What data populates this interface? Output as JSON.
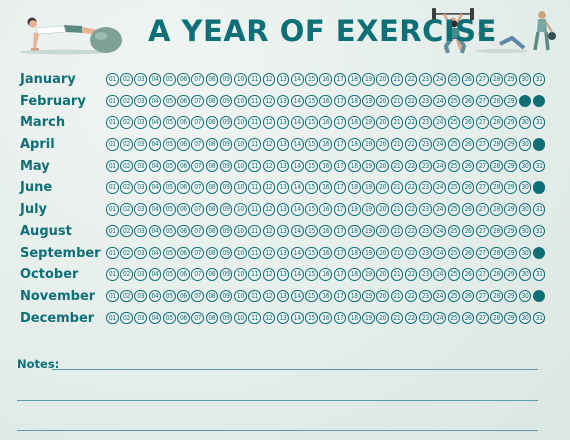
{
  "title": "A YEAR OF EXERCISE",
  "colors": {
    "accent": "#0f6f76",
    "background": "#e6efec"
  },
  "illustrations": [
    "pushup-figure",
    "exercise-ball",
    "weightlifter-figure",
    "squat-figure",
    "crunch-figure",
    "kettlebell-figure"
  ],
  "day_labels": [
    "01",
    "02",
    "03",
    "04",
    "05",
    "06",
    "07",
    "08",
    "09",
    "10",
    "11",
    "12",
    "13",
    "14",
    "15",
    "16",
    "17",
    "18",
    "19",
    "20",
    "21",
    "22",
    "23",
    "24",
    "25",
    "26",
    "27",
    "28",
    "29",
    "30",
    "31"
  ],
  "months": [
    {
      "name": "January",
      "filled_days": []
    },
    {
      "name": "February",
      "filled_days": [
        30,
        31
      ]
    },
    {
      "name": "March",
      "filled_days": []
    },
    {
      "name": "April",
      "filled_days": [
        31
      ]
    },
    {
      "name": "May",
      "filled_days": []
    },
    {
      "name": "June",
      "filled_days": [
        31
      ]
    },
    {
      "name": "July",
      "filled_days": []
    },
    {
      "name": "August",
      "filled_days": []
    },
    {
      "name": "September",
      "filled_days": [
        31
      ]
    },
    {
      "name": "October",
      "filled_days": []
    },
    {
      "name": "November",
      "filled_days": [
        31
      ]
    },
    {
      "name": "December",
      "filled_days": []
    }
  ],
  "notes": {
    "label": "Notes:"
  }
}
